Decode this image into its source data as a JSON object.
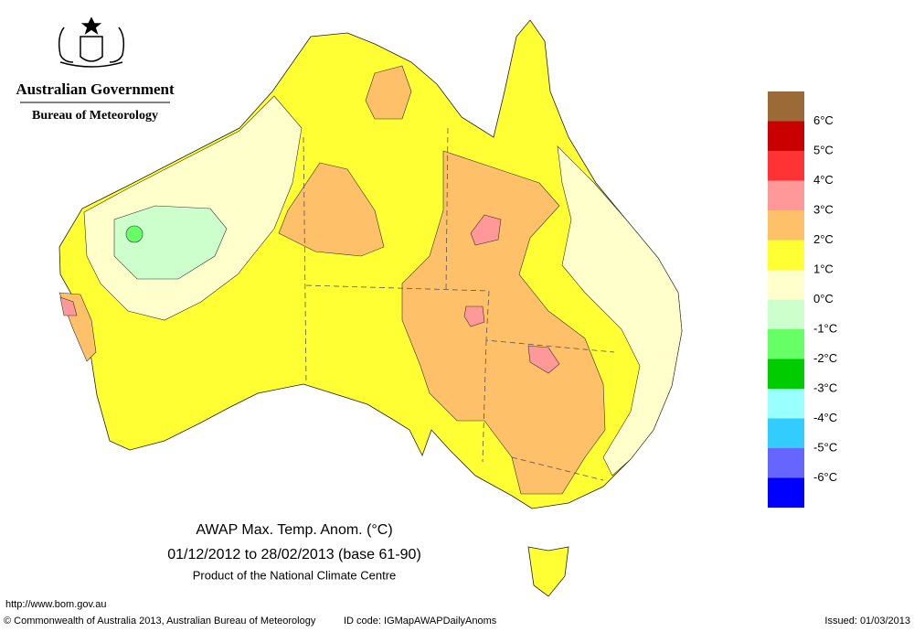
{
  "header": {
    "title": "Australian Government",
    "subtitle": "Bureau of Meteorology"
  },
  "map": {
    "title": "AWAP Max. Temp. Anom. (°C)",
    "period": "01/12/2012 to 28/02/2013 (base 61-90)",
    "product": "Product of the National Climate Centre"
  },
  "legend": {
    "colors": [
      "#9b6a37",
      "#c80000",
      "#ff3333",
      "#ff9999",
      "#ffc06a",
      "#ffff33",
      "#ffffcc",
      "#ccffcc",
      "#66ff66",
      "#00cc00",
      "#99ffff",
      "#33ccff",
      "#6666ff",
      "#0000ff"
    ],
    "labels": [
      "6°C",
      "5°C",
      "4°C",
      "3°C",
      "2°C",
      "1°C",
      "0°C",
      "-1°C",
      "-2°C",
      "-3°C",
      "-4°C",
      "-5°C",
      "-6°C"
    ]
  },
  "footer": {
    "url": "http://www.bom.gov.au",
    "copyright": "© Commonwealth of Australia 2013, Australian Bureau of Meteorology",
    "id_code": "ID code: IGMapAWAPDailyAnoms",
    "issued": "Issued: 01/03/2013"
  }
}
